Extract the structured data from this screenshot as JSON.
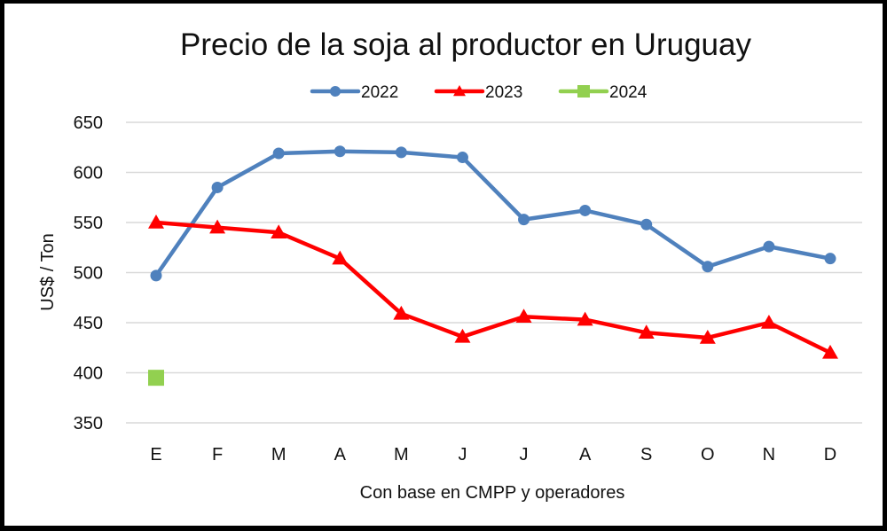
{
  "chart_data": {
    "type": "line",
    "title": "Precio de la soja al productor en Uruguay",
    "xlabel": "Con base en CMPP y operadores",
    "ylabel": "US$ / Ton",
    "ylim": [
      350,
      650
    ],
    "yticks": [
      650,
      600,
      550,
      500,
      450,
      400,
      350
    ],
    "grid": true,
    "legend_position": "top",
    "categories": [
      "E",
      "F",
      "M",
      "A",
      "M",
      "J",
      "J",
      "A",
      "S",
      "O",
      "N",
      "D"
    ],
    "series": [
      {
        "name": "2022",
        "color": "#4F81BD",
        "marker": "circle",
        "values": [
          497,
          585,
          619,
          621,
          620,
          615,
          553,
          562,
          548,
          506,
          526,
          514
        ]
      },
      {
        "name": "2023",
        "color": "#FF0000",
        "marker": "triangle",
        "values": [
          550,
          545,
          540,
          514,
          459,
          436,
          456,
          453,
          440,
          435,
          450,
          420
        ]
      },
      {
        "name": "2024",
        "color": "#92D050",
        "marker": "square",
        "values": [
          395,
          null,
          null,
          null,
          null,
          null,
          null,
          null,
          null,
          null,
          null,
          null
        ]
      }
    ]
  }
}
